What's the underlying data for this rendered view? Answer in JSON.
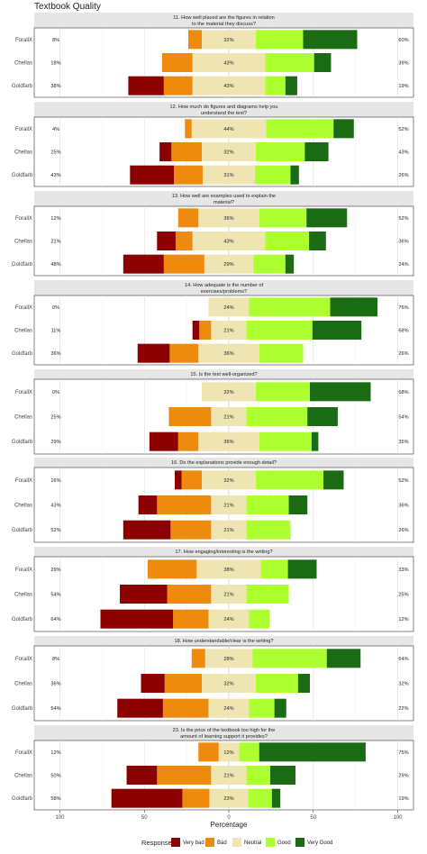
{
  "chart_data": {
    "type": "bar",
    "title": "Textbook Quality",
    "xlabel": "Percentage",
    "x_ticks": [
      100,
      50,
      0,
      50,
      100
    ],
    "xlim": [
      -100,
      100
    ],
    "legend": {
      "title": "Response",
      "placement": "bottom",
      "items": [
        {
          "name": "Very bad",
          "color": "#8b0000"
        },
        {
          "name": "Bad",
          "color": "#ee8a0e"
        },
        {
          "name": "Neutral",
          "color": "#efe5b2"
        },
        {
          "name": "Good",
          "color": "#adff2f"
        },
        {
          "name": "Very Good",
          "color": "#1a6b14"
        }
      ]
    },
    "panels": [
      {
        "title": [
          "11. How well placed are the figures in relation",
          "to the material they discuss?"
        ],
        "rows": [
          {
            "label": "ForallX",
            "left_pct": "8%",
            "neutral_pct": "32%",
            "right_pct": "60%",
            "values": {
              "Very bad": 0,
              "Bad": 8,
              "Neutral": 32,
              "Good": 28,
              "Very Good": 32
            }
          },
          {
            "label": "Chellas",
            "left_pct": "18%",
            "neutral_pct": "43%",
            "right_pct": "39%",
            "values": {
              "Very bad": 0,
              "Bad": 18,
              "Neutral": 43,
              "Good": 29,
              "Very Good": 10
            }
          },
          {
            "label": "Goldfarb",
            "left_pct": "38%",
            "neutral_pct": "43%",
            "right_pct": "19%",
            "values": {
              "Very bad": 21,
              "Bad": 17,
              "Neutral": 43,
              "Good": 12,
              "Very Good": 7
            }
          }
        ]
      },
      {
        "title": [
          "12. How much do figures and diagrams help you",
          "understand the text?"
        ],
        "rows": [
          {
            "label": "ForallX",
            "left_pct": "4%",
            "neutral_pct": "44%",
            "right_pct": "52%",
            "values": {
              "Very bad": 0,
              "Bad": 4,
              "Neutral": 44,
              "Good": 40,
              "Very Good": 12
            }
          },
          {
            "label": "Chellas",
            "left_pct": "25%",
            "neutral_pct": "32%",
            "right_pct": "43%",
            "values": {
              "Very bad": 7,
              "Bad": 18,
              "Neutral": 32,
              "Good": 29,
              "Very Good": 14
            }
          },
          {
            "label": "Goldfarb",
            "left_pct": "43%",
            "neutral_pct": "31%",
            "right_pct": "26%",
            "values": {
              "Very bad": 26,
              "Bad": 17,
              "Neutral": 31,
              "Good": 21,
              "Very Good": 5
            }
          }
        ]
      },
      {
        "title": [
          "13. How well are examples used to explain the",
          "material?"
        ],
        "rows": [
          {
            "label": "ForallX",
            "left_pct": "12%",
            "neutral_pct": "36%",
            "right_pct": "52%",
            "values": {
              "Very bad": 0,
              "Bad": 12,
              "Neutral": 36,
              "Good": 28,
              "Very Good": 24
            }
          },
          {
            "label": "Chellas",
            "left_pct": "21%",
            "neutral_pct": "43%",
            "right_pct": "36%",
            "values": {
              "Very bad": 11,
              "Bad": 10,
              "Neutral": 43,
              "Good": 26,
              "Very Good": 10
            }
          },
          {
            "label": "Goldfarb",
            "left_pct": "48%",
            "neutral_pct": "29%",
            "right_pct": "24%",
            "values": {
              "Very bad": 24,
              "Bad": 24,
              "Neutral": 29,
              "Good": 19,
              "Very Good": 5
            }
          }
        ]
      },
      {
        "title": [
          "14. How adequate is the number of",
          "exercises/problems?"
        ],
        "rows": [
          {
            "label": "ForallX",
            "left_pct": "0%",
            "neutral_pct": "24%",
            "right_pct": "76%",
            "values": {
              "Very bad": 0,
              "Bad": 0,
              "Neutral": 24,
              "Good": 48,
              "Very Good": 28
            }
          },
          {
            "label": "Chellas",
            "left_pct": "11%",
            "neutral_pct": "21%",
            "right_pct": "68%",
            "values": {
              "Very bad": 4,
              "Bad": 7,
              "Neutral": 21,
              "Good": 39,
              "Very Good": 29
            }
          },
          {
            "label": "Goldfarb",
            "left_pct": "36%",
            "neutral_pct": "36%",
            "right_pct": "26%",
            "values": {
              "Very bad": 19,
              "Bad": 17,
              "Neutral": 36,
              "Good": 26,
              "Very Good": 0
            }
          }
        ]
      },
      {
        "title": [
          "15. Is the text well-organized?"
        ],
        "rows": [
          {
            "label": "ForallX",
            "left_pct": "0%",
            "neutral_pct": "32%",
            "right_pct": "68%",
            "values": {
              "Very bad": 0,
              "Bad": 0,
              "Neutral": 32,
              "Good": 32,
              "Very Good": 36
            }
          },
          {
            "label": "Chellas",
            "left_pct": "25%",
            "neutral_pct": "21%",
            "right_pct": "54%",
            "values": {
              "Very bad": 0,
              "Bad": 25,
              "Neutral": 21,
              "Good": 36,
              "Very Good": 18
            }
          },
          {
            "label": "Goldfarb",
            "left_pct": "29%",
            "neutral_pct": "36%",
            "right_pct": "35%",
            "values": {
              "Very bad": 17,
              "Bad": 12,
              "Neutral": 36,
              "Good": 31,
              "Very Good": 4
            }
          }
        ]
      },
      {
        "title": [
          "16. Do the explanations provide enough detail?"
        ],
        "rows": [
          {
            "label": "ForallX",
            "left_pct": "16%",
            "neutral_pct": "32%",
            "right_pct": "52%",
            "values": {
              "Very bad": 4,
              "Bad": 12,
              "Neutral": 32,
              "Good": 40,
              "Very Good": 12
            }
          },
          {
            "label": "Chellas",
            "left_pct": "43%",
            "neutral_pct": "21%",
            "right_pct": "36%",
            "values": {
              "Very bad": 11,
              "Bad": 32,
              "Neutral": 21,
              "Good": 25,
              "Very Good": 11
            }
          },
          {
            "label": "Goldfarb",
            "left_pct": "52%",
            "neutral_pct": "21%",
            "right_pct": "26%",
            "values": {
              "Very bad": 28,
              "Bad": 24,
              "Neutral": 21,
              "Good": 26,
              "Very Good": 0
            }
          }
        ]
      },
      {
        "title": [
          "17. How engaging/interesting is the writing?"
        ],
        "rows": [
          {
            "label": "ForallX",
            "left_pct": "29%",
            "neutral_pct": "38%",
            "right_pct": "33%",
            "values": {
              "Very bad": 0,
              "Bad": 29,
              "Neutral": 38,
              "Good": 16,
              "Very Good": 17
            }
          },
          {
            "label": "Chellas",
            "left_pct": "54%",
            "neutral_pct": "21%",
            "right_pct": "25%",
            "values": {
              "Very bad": 28,
              "Bad": 26,
              "Neutral": 21,
              "Good": 25,
              "Very Good": 0
            }
          },
          {
            "label": "Goldfarb",
            "left_pct": "64%",
            "neutral_pct": "24%",
            "right_pct": "12%",
            "values": {
              "Very bad": 43,
              "Bad": 21,
              "Neutral": 24,
              "Good": 12,
              "Very Good": 0
            }
          }
        ]
      },
      {
        "title": [
          "18. How understandable/clear is the writing?"
        ],
        "rows": [
          {
            "label": "ForallX",
            "left_pct": "8%",
            "neutral_pct": "28%",
            "right_pct": "64%",
            "values": {
              "Very bad": 0,
              "Bad": 8,
              "Neutral": 28,
              "Good": 44,
              "Very Good": 20
            }
          },
          {
            "label": "Chellas",
            "left_pct": "36%",
            "neutral_pct": "32%",
            "right_pct": "32%",
            "values": {
              "Very bad": 14,
              "Bad": 22,
              "Neutral": 32,
              "Good": 25,
              "Very Good": 7
            }
          },
          {
            "label": "Goldfarb",
            "left_pct": "54%",
            "neutral_pct": "24%",
            "right_pct": "22%",
            "values": {
              "Very bad": 27,
              "Bad": 27,
              "Neutral": 24,
              "Good": 15,
              "Very Good": 7
            }
          }
        ]
      },
      {
        "title": [
          "23. Is the price of the textbook too high for the",
          "amount of learning support it provides?"
        ],
        "rows": [
          {
            "label": "ForallX",
            "left_pct": "12%",
            "neutral_pct": "12%",
            "right_pct": "75%",
            "values": {
              "Very bad": 0,
              "Bad": 12,
              "Neutral": 12,
              "Good": 12,
              "Very Good": 63
            }
          },
          {
            "label": "Chellas",
            "left_pct": "50%",
            "neutral_pct": "21%",
            "right_pct": "29%",
            "values": {
              "Very bad": 18,
              "Bad": 32,
              "Neutral": 21,
              "Good": 14,
              "Very Good": 15
            }
          },
          {
            "label": "Goldfarb",
            "left_pct": "58%",
            "neutral_pct": "23%",
            "right_pct": "19%",
            "values": {
              "Very bad": 42,
              "Bad": 16,
              "Neutral": 23,
              "Good": 14,
              "Very Good": 5
            }
          }
        ]
      }
    ]
  }
}
